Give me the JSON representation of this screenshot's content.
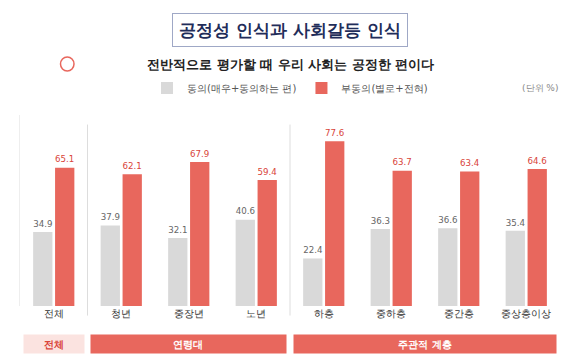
{
  "chart_data": {
    "type": "bar",
    "title": "공정성 인식과 사회갈등 인식",
    "subtitle": "전반적으로 평가할 때 우리 사회는 공정한 편이다",
    "unit": "(단위 %)",
    "categories": [
      "전체",
      "청년",
      "중장년",
      "노년",
      "하층",
      "중하층",
      "중간층",
      "중상층이상"
    ],
    "groups": [
      {
        "label": "전체",
        "from": "전체",
        "to": "전체"
      },
      {
        "label": "연령대",
        "from": "청년",
        "to": "노년"
      },
      {
        "label": "주관적 계층",
        "from": "하층",
        "to": "중상층이상"
      }
    ],
    "series": [
      {
        "name": "동의(매우+동의하는 편)",
        "color": "#d9d9d9",
        "values": [
          34.9,
          37.9,
          32.1,
          40.6,
          22.4,
          36.3,
          36.6,
          35.4
        ]
      },
      {
        "name": "부동의(별로+전혀)",
        "color": "#e8675d",
        "values": [
          65.1,
          62.1,
          67.9,
          59.4,
          77.6,
          63.7,
          63.4,
          64.6
        ]
      }
    ],
    "ylim": [
      0,
      90
    ],
    "tick_labels": "x",
    "data_labels": true,
    "legend": "top",
    "grid": false
  }
}
